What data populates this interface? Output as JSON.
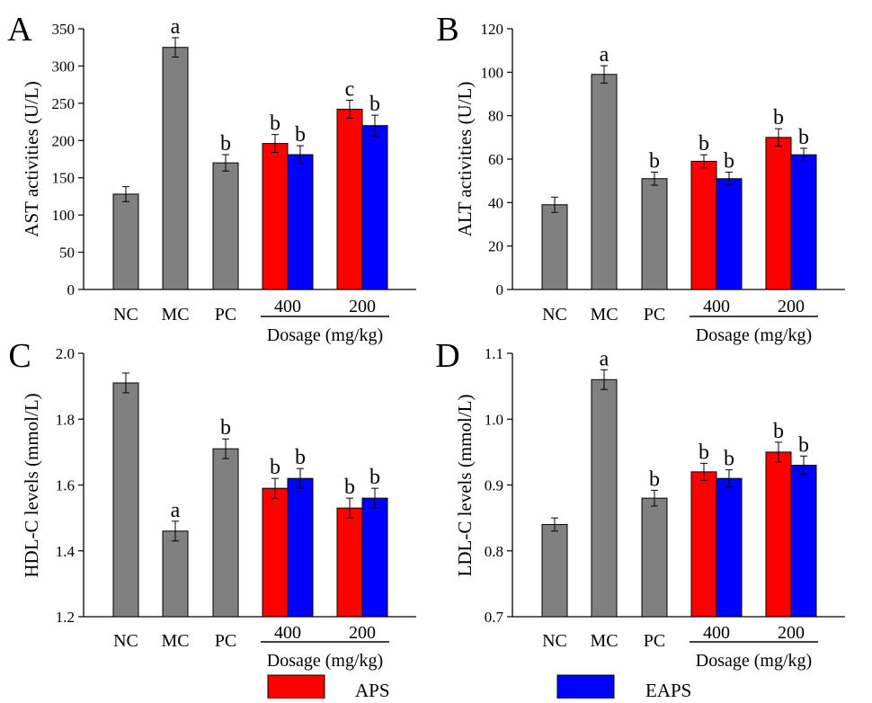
{
  "figure": {
    "legend": [
      {
        "label": "APS",
        "color": "#ff0000"
      },
      {
        "label": "EAPS",
        "color": "#0000ff"
      }
    ],
    "dosage_label": "Dosage (mg/kg)",
    "dosage_groups": [
      "400",
      "200"
    ],
    "control_color": "#808080"
  },
  "chart_data": [
    {
      "type": "bar",
      "panel_label": "A",
      "ylabel": "AST activities (U/L)",
      "ylim": [
        0,
        350
      ],
      "yticks": [
        0,
        50,
        100,
        150,
        200,
        250,
        300,
        350
      ],
      "categories": [
        "NC",
        "MC",
        "PC"
      ],
      "controls": [
        {
          "name": "NC",
          "value": 128,
          "err": 10,
          "letter": ""
        },
        {
          "name": "MC",
          "value": 325,
          "err": 13,
          "letter": "a"
        },
        {
          "name": "PC",
          "value": 170,
          "err": 11,
          "letter": "b"
        }
      ],
      "groups": [
        {
          "dose": "400",
          "bars": [
            {
              "series": "APS",
              "value": 196,
              "err": 12,
              "letter": "b"
            },
            {
              "series": "EAPS",
              "value": 181,
              "err": 12,
              "letter": "b"
            }
          ]
        },
        {
          "dose": "200",
          "bars": [
            {
              "series": "APS",
              "value": 242,
              "err": 12,
              "letter": "c"
            },
            {
              "series": "EAPS",
              "value": 220,
              "err": 14,
              "letter": "b"
            }
          ]
        }
      ]
    },
    {
      "type": "bar",
      "panel_label": "B",
      "ylabel": "ALT activities (U/L)",
      "ylim": [
        0,
        120
      ],
      "yticks": [
        0,
        20,
        40,
        60,
        80,
        100,
        120
      ],
      "categories": [
        "NC",
        "MC",
        "PC"
      ],
      "controls": [
        {
          "name": "NC",
          "value": 39,
          "err": 3.5,
          "letter": ""
        },
        {
          "name": "MC",
          "value": 99,
          "err": 4,
          "letter": "a"
        },
        {
          "name": "PC",
          "value": 51,
          "err": 3,
          "letter": "b"
        }
      ],
      "groups": [
        {
          "dose": "400",
          "bars": [
            {
              "series": "APS",
              "value": 59,
              "err": 3,
              "letter": "b"
            },
            {
              "series": "EAPS",
              "value": 51,
              "err": 3,
              "letter": "b"
            }
          ]
        },
        {
          "dose": "200",
          "bars": [
            {
              "series": "APS",
              "value": 70,
              "err": 4,
              "letter": "b"
            },
            {
              "series": "EAPS",
              "value": 62,
              "err": 3,
              "letter": "b"
            }
          ]
        }
      ]
    },
    {
      "type": "bar",
      "panel_label": "C",
      "ylabel": "HDL-C levels (mmol/L)",
      "ylim": [
        1.2,
        2.0
      ],
      "yticks": [
        1.2,
        1.4,
        1.6,
        1.8,
        2.0
      ],
      "categories": [
        "NC",
        "MC",
        "PC"
      ],
      "controls": [
        {
          "name": "NC",
          "value": 1.91,
          "err": 0.03,
          "letter": ""
        },
        {
          "name": "MC",
          "value": 1.46,
          "err": 0.03,
          "letter": "a"
        },
        {
          "name": "PC",
          "value": 1.71,
          "err": 0.03,
          "letter": "b"
        }
      ],
      "groups": [
        {
          "dose": "400",
          "bars": [
            {
              "series": "APS",
              "value": 1.59,
              "err": 0.03,
              "letter": "b"
            },
            {
              "series": "EAPS",
              "value": 1.62,
              "err": 0.03,
              "letter": "b"
            }
          ]
        },
        {
          "dose": "200",
          "bars": [
            {
              "series": "APS",
              "value": 1.53,
              "err": 0.03,
              "letter": "b"
            },
            {
              "series": "EAPS",
              "value": 1.56,
              "err": 0.03,
              "letter": "b"
            }
          ]
        }
      ]
    },
    {
      "type": "bar",
      "panel_label": "D",
      "ylabel": "LDL-C levels (mmol/L)",
      "ylim": [
        0.7,
        1.1
      ],
      "yticks": [
        0.7,
        0.8,
        0.9,
        1.0,
        1.1
      ],
      "categories": [
        "NC",
        "MC",
        "PC"
      ],
      "controls": [
        {
          "name": "NC",
          "value": 0.84,
          "err": 0.01,
          "letter": ""
        },
        {
          "name": "MC",
          "value": 1.06,
          "err": 0.015,
          "letter": "a"
        },
        {
          "name": "PC",
          "value": 0.88,
          "err": 0.012,
          "letter": "b"
        }
      ],
      "groups": [
        {
          "dose": "400",
          "bars": [
            {
              "series": "APS",
              "value": 0.92,
              "err": 0.013,
              "letter": "b"
            },
            {
              "series": "EAPS",
              "value": 0.91,
              "err": 0.013,
              "letter": "b"
            }
          ]
        },
        {
          "dose": "200",
          "bars": [
            {
              "series": "APS",
              "value": 0.95,
              "err": 0.015,
              "letter": "b"
            },
            {
              "series": "EAPS",
              "value": 0.93,
              "err": 0.014,
              "letter": "b"
            }
          ]
        }
      ]
    }
  ]
}
